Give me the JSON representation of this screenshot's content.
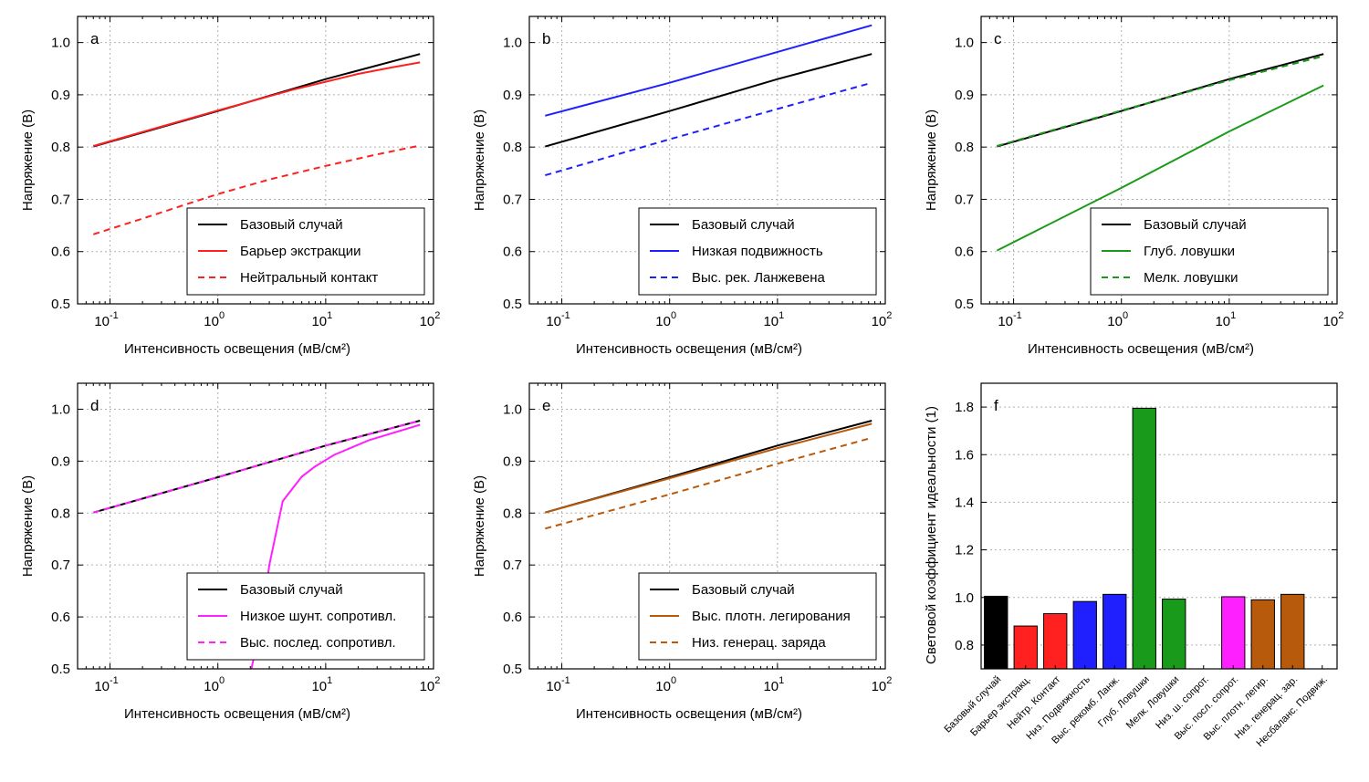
{
  "colors": {
    "base": "#000000",
    "red": "#ff2020",
    "blue": "#2020ff",
    "green": "#1a9a1a",
    "magenta": "#ff20ff",
    "brown": "#b85a0c",
    "grid": "#b0b0b0"
  },
  "chart_data": [
    {
      "type": "line",
      "panel": "a",
      "xlabel": "Интенсивность освещения (мВ/см²)",
      "ylabel": "Напряжение (В)",
      "xscale": "log",
      "xlim": [
        0.05,
        100
      ],
      "ylim": [
        0.5,
        1.05
      ],
      "yticks": [
        "0.5",
        "0.6",
        "0.7",
        "0.8",
        "0.9",
        "1.0"
      ],
      "xticks": [
        {
          "base": "10",
          "exp": "-1"
        },
        {
          "base": "10",
          "exp": "0"
        },
        {
          "base": "10",
          "exp": "1"
        },
        {
          "base": "10",
          "exp": "2"
        }
      ],
      "grid": true,
      "legend_position": "lower-right",
      "series": [
        {
          "name": "Базовый случай",
          "color": "base",
          "dash": false,
          "points": [
            [
              0.07,
              0.801
            ],
            [
              1,
              0.869
            ],
            [
              10,
              0.93
            ],
            [
              75,
              0.978
            ]
          ]
        },
        {
          "name": "Барьер экстракции",
          "color": "red",
          "dash": false,
          "points": [
            [
              0.07,
              0.802
            ],
            [
              1,
              0.87
            ],
            [
              5,
              0.91
            ],
            [
              10,
              0.925
            ],
            [
              20,
              0.94
            ],
            [
              40,
              0.952
            ],
            [
              75,
              0.962
            ]
          ]
        },
        {
          "name": "Нейтральный контакт",
          "color": "red",
          "dash": true,
          "points": [
            [
              0.07,
              0.633
            ],
            [
              0.2,
              0.663
            ],
            [
              0.5,
              0.69
            ],
            [
              1,
              0.71
            ],
            [
              3,
              0.738
            ],
            [
              10,
              0.764
            ],
            [
              30,
              0.786
            ],
            [
              75,
              0.803
            ]
          ]
        }
      ]
    },
    {
      "type": "line",
      "panel": "b",
      "xlabel": "Интенсивность освещения (мВ/см²)",
      "ylabel": "Напряжение (В)",
      "xscale": "log",
      "xlim": [
        0.05,
        100
      ],
      "ylim": [
        0.5,
        1.05
      ],
      "yticks": [
        "0.5",
        "0.6",
        "0.7",
        "0.8",
        "0.9",
        "1.0"
      ],
      "xticks": [
        {
          "base": "10",
          "exp": "-1"
        },
        {
          "base": "10",
          "exp": "0"
        },
        {
          "base": "10",
          "exp": "1"
        },
        {
          "base": "10",
          "exp": "2"
        }
      ],
      "grid": true,
      "legend_position": "lower-right",
      "series": [
        {
          "name": "Базовый случай",
          "color": "base",
          "dash": false,
          "points": [
            [
              0.07,
              0.801
            ],
            [
              1,
              0.869
            ],
            [
              10,
              0.93
            ],
            [
              75,
              0.978
            ]
          ]
        },
        {
          "name": "Низкая подвижность",
          "color": "blue",
          "dash": false,
          "points": [
            [
              0.07,
              0.86
            ],
            [
              1,
              0.923
            ],
            [
              10,
              0.982
            ],
            [
              75,
              1.033
            ]
          ]
        },
        {
          "name": "Выс. рек. Ланжевена",
          "color": "blue",
          "dash": true,
          "points": [
            [
              0.07,
              0.746
            ],
            [
              1,
              0.815
            ],
            [
              10,
              0.873
            ],
            [
              75,
              0.923
            ]
          ]
        }
      ]
    },
    {
      "type": "line",
      "panel": "c",
      "xlabel": "Интенсивность освещения (мВ/см²)",
      "ylabel": "Напряжение (В)",
      "xscale": "log",
      "xlim": [
        0.05,
        100
      ],
      "ylim": [
        0.5,
        1.05
      ],
      "yticks": [
        "0.5",
        "0.6",
        "0.7",
        "0.8",
        "0.9",
        "1.0"
      ],
      "xticks": [
        {
          "base": "10",
          "exp": "-1"
        },
        {
          "base": "10",
          "exp": "0"
        },
        {
          "base": "10",
          "exp": "1"
        },
        {
          "base": "10",
          "exp": "2"
        }
      ],
      "grid": true,
      "legend_position": "lower-right",
      "series": [
        {
          "name": "Базовый случай",
          "color": "base",
          "dash": false,
          "points": [
            [
              0.07,
              0.801
            ],
            [
              1,
              0.869
            ],
            [
              10,
              0.93
            ],
            [
              75,
              0.978
            ]
          ]
        },
        {
          "name": "Глуб. ловушки",
          "color": "green",
          "dash": false,
          "points": [
            [
              0.07,
              0.602
            ],
            [
              1,
              0.722
            ],
            [
              10,
              0.83
            ],
            [
              75,
              0.918
            ]
          ]
        },
        {
          "name": "Мелк. ловушки",
          "color": "green",
          "dash": true,
          "points": [
            [
              0.07,
              0.802
            ],
            [
              1,
              0.87
            ],
            [
              10,
              0.928
            ],
            [
              75,
              0.974
            ]
          ]
        }
      ]
    },
    {
      "type": "line",
      "panel": "d",
      "xlabel": "Интенсивность освещения (мВ/см²)",
      "ylabel": "Напряжение (В)",
      "xscale": "log",
      "xlim": [
        0.05,
        100
      ],
      "ylim": [
        0.5,
        1.05
      ],
      "yticks": [
        "0.5",
        "0.6",
        "0.7",
        "0.8",
        "0.9",
        "1.0"
      ],
      "xticks": [
        {
          "base": "10",
          "exp": "-1"
        },
        {
          "base": "10",
          "exp": "0"
        },
        {
          "base": "10",
          "exp": "1"
        },
        {
          "base": "10",
          "exp": "2"
        }
      ],
      "grid": true,
      "legend_position": "lower-right",
      "series": [
        {
          "name": "Базовый случай",
          "color": "base",
          "dash": false,
          "points": [
            [
              0.07,
              0.801
            ],
            [
              1,
              0.869
            ],
            [
              10,
              0.93
            ],
            [
              75,
              0.978
            ]
          ]
        },
        {
          "name": "Низкое шунт. сопротивл.",
          "color": "magenta",
          "dash": false,
          "points": [
            [
              1.8,
              0.45
            ],
            [
              2.5,
              0.58
            ],
            [
              3.0,
              0.7
            ],
            [
              4.0,
              0.823
            ],
            [
              6.0,
              0.87
            ],
            [
              8.0,
              0.89
            ],
            [
              12,
              0.912
            ],
            [
              25,
              0.94
            ],
            [
              75,
              0.97
            ]
          ]
        },
        {
          "name": "Выс. послед. сопротивл.",
          "color": "magenta",
          "dash": true,
          "points": [
            [
              0.07,
              0.801
            ],
            [
              1,
              0.869
            ],
            [
              10,
              0.93
            ],
            [
              75,
              0.978
            ]
          ]
        }
      ]
    },
    {
      "type": "line",
      "panel": "e",
      "xlabel": "Интенсивность освещения (мВ/см²)",
      "ylabel": "Напряжение (В)",
      "xscale": "log",
      "xlim": [
        0.05,
        100
      ],
      "ylim": [
        0.5,
        1.05
      ],
      "yticks": [
        "0.5",
        "0.6",
        "0.7",
        "0.8",
        "0.9",
        "1.0"
      ],
      "xticks": [
        {
          "base": "10",
          "exp": "-1"
        },
        {
          "base": "10",
          "exp": "0"
        },
        {
          "base": "10",
          "exp": "1"
        },
        {
          "base": "10",
          "exp": "2"
        }
      ],
      "grid": true,
      "legend_position": "lower-right",
      "series": [
        {
          "name": "Базовый случай",
          "color": "base",
          "dash": false,
          "points": [
            [
              0.07,
              0.801
            ],
            [
              1,
              0.869
            ],
            [
              10,
              0.93
            ],
            [
              75,
              0.978
            ]
          ]
        },
        {
          "name": "Выс. плотн. легирования",
          "color": "brown",
          "dash": false,
          "points": [
            [
              0.07,
              0.801
            ],
            [
              1,
              0.867
            ],
            [
              10,
              0.925
            ],
            [
              75,
              0.972
            ]
          ]
        },
        {
          "name": "Низ. генерац. заряда",
          "color": "brown",
          "dash": true,
          "points": [
            [
              0.07,
              0.77
            ],
            [
              1,
              0.836
            ],
            [
              10,
              0.895
            ],
            [
              75,
              0.945
            ]
          ]
        }
      ]
    },
    {
      "type": "bar",
      "panel": "f",
      "xlabel": "",
      "ylabel": "Световой коэффициент идеальности (1)",
      "ylim": [
        0.7,
        1.9
      ],
      "yticks": [
        "0.8",
        "1.0",
        "1.2",
        "1.4",
        "1.6",
        "1.8"
      ],
      "grid": true,
      "categories": [
        "Базовый случай",
        "Барьер экстракц.",
        "Нейтр. Контакт",
        "Низ. Подвижность",
        "Выс. рекомб. Ланж.",
        "Глуб. Ловушки",
        "Мелк. Ловушки",
        "Низ. ш. сопрот.",
        "Выс. посл. сопрот.",
        "Выс. плотн. легир.",
        "Низ. генерац. зар.",
        "Несбаланс. Подвиж."
      ],
      "values": [
        1.005,
        0.88,
        0.932,
        0.983,
        1.013,
        1.795,
        0.993,
        null,
        1.003,
        0.99,
        1.013,
        null
      ],
      "bar_colors": [
        "base",
        "red",
        "red",
        "blue",
        "blue",
        "green",
        "green",
        "magenta",
        "magenta",
        "brown",
        "brown",
        "brown"
      ]
    }
  ]
}
